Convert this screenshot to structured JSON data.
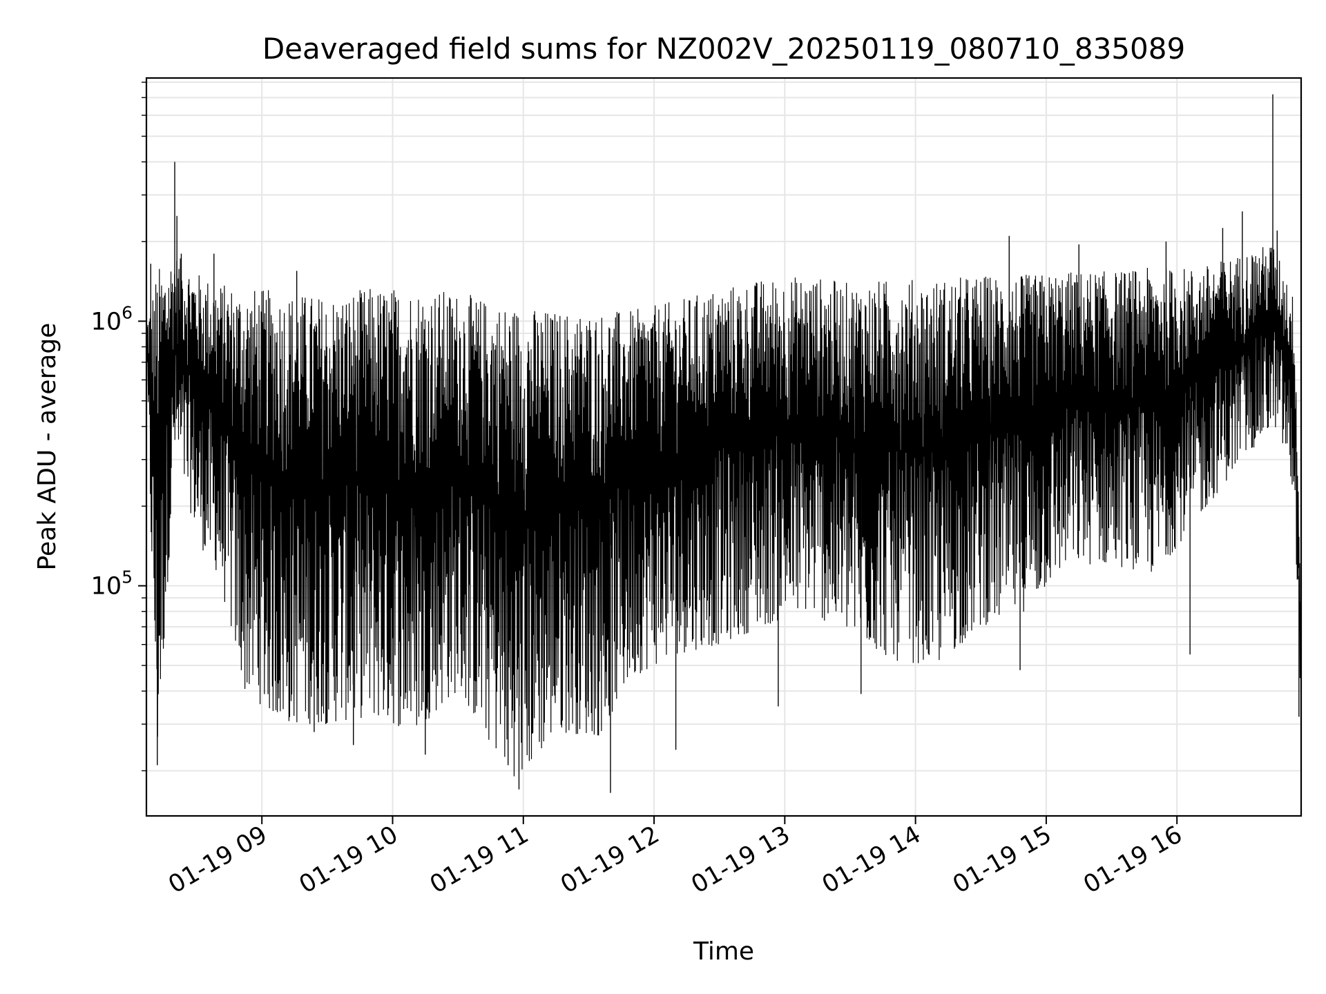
{
  "chart_data": {
    "type": "line",
    "title": "Deaveraged field sums for NZ002V_20250119_080710_835089",
    "xlabel": "Time",
    "ylabel": "Peak ADU - average",
    "y_scale": "log",
    "ylim": [
      13500,
      8300000
    ],
    "xlim": [
      "2025-01-19 08:07",
      "2025-01-19 16:57"
    ],
    "grid": true,
    "line_color": "#000000",
    "x_ticks": [
      {
        "label": "01-19 09",
        "time": "2025-01-19 09:00"
      },
      {
        "label": "01-19 10",
        "time": "2025-01-19 10:00"
      },
      {
        "label": "01-19 11",
        "time": "2025-01-19 11:00"
      },
      {
        "label": "01-19 12",
        "time": "2025-01-19 12:00"
      },
      {
        "label": "01-19 13",
        "time": "2025-01-19 13:00"
      },
      {
        "label": "01-19 14",
        "time": "2025-01-19 14:00"
      },
      {
        "label": "01-19 15",
        "time": "2025-01-19 15:00"
      },
      {
        "label": "01-19 16",
        "time": "2025-01-19 16:00"
      }
    ],
    "y_ticks": [
      {
        "label_base": "10",
        "label_exp": "5",
        "value": 100000
      },
      {
        "label_base": "10",
        "label_exp": "6",
        "value": 1000000
      }
    ],
    "series": [
      {
        "style": "dense-oscillating",
        "envelope": [
          {
            "time": "2025-01-19 08:07",
            "high": 1000000,
            "low": 600000
          },
          {
            "time": "2025-01-19 08:12",
            "high": 1600000,
            "low": 21000
          },
          {
            "time": "2025-01-19 08:20",
            "high": 1800000,
            "low": 300000
          },
          {
            "time": "2025-01-19 08:32",
            "high": 1500000,
            "low": 140000
          },
          {
            "time": "2025-01-19 08:40",
            "high": 1400000,
            "low": 110000
          },
          {
            "time": "2025-01-19 08:52",
            "high": 1350000,
            "low": 40000
          },
          {
            "time": "2025-01-19 09:10",
            "high": 1300000,
            "low": 30000
          },
          {
            "time": "2025-01-19 09:30",
            "high": 1250000,
            "low": 30000
          },
          {
            "time": "2025-01-19 09:50",
            "high": 1350000,
            "low": 32000
          },
          {
            "time": "2025-01-19 10:10",
            "high": 1350000,
            "low": 28000
          },
          {
            "time": "2025-01-19 10:30",
            "high": 1300000,
            "low": 40000
          },
          {
            "time": "2025-01-19 10:45",
            "high": 1200000,
            "low": 25000
          },
          {
            "time": "2025-01-19 10:58",
            "high": 1150000,
            "low": 18000
          },
          {
            "time": "2025-01-19 11:15",
            "high": 1100000,
            "low": 28000
          },
          {
            "time": "2025-01-19 11:35",
            "high": 1100000,
            "low": 27000
          },
          {
            "time": "2025-01-19 11:50",
            "high": 1100000,
            "low": 45000
          },
          {
            "time": "2025-01-19 12:10",
            "high": 1200000,
            "low": 55000
          },
          {
            "time": "2025-01-19 12:30",
            "high": 1350000,
            "low": 60000
          },
          {
            "time": "2025-01-19 12:50",
            "high": 1450000,
            "low": 70000
          },
          {
            "time": "2025-01-19 13:10",
            "high": 1500000,
            "low": 80000
          },
          {
            "time": "2025-01-19 13:30",
            "high": 1400000,
            "low": 65000
          },
          {
            "time": "2025-01-19 13:50",
            "high": 1450000,
            "low": 52000
          },
          {
            "time": "2025-01-19 14:10",
            "high": 1450000,
            "low": 50000
          },
          {
            "time": "2025-01-19 14:30",
            "high": 1500000,
            "low": 70000
          },
          {
            "time": "2025-01-19 14:50",
            "high": 1500000,
            "low": 80000
          },
          {
            "time": "2025-01-19 15:10",
            "high": 1550000,
            "low": 120000
          },
          {
            "time": "2025-01-19 15:30",
            "high": 1550000,
            "low": 120000
          },
          {
            "time": "2025-01-19 15:50",
            "high": 1600000,
            "low": 110000
          },
          {
            "time": "2025-01-19 16:10",
            "high": 1600000,
            "low": 180000
          },
          {
            "time": "2025-01-19 16:30",
            "high": 1800000,
            "low": 300000
          },
          {
            "time": "2025-01-19 16:45",
            "high": 2000000,
            "low": 400000
          },
          {
            "time": "2025-01-19 16:50",
            "high": 1500000,
            "low": 300000
          },
          {
            "time": "2025-01-19 16:54",
            "high": 1200000,
            "low": 200000
          },
          {
            "time": "2025-01-19 16:57",
            "high": 80000,
            "low": 33000
          }
        ],
        "spikes": [
          {
            "time": "2025-01-19 08:09",
            "value": 1650000
          },
          {
            "time": "2025-01-19 08:12",
            "value": 21000
          },
          {
            "time": "2025-01-19 08:20",
            "value": 4000000
          },
          {
            "time": "2025-01-19 08:21",
            "value": 2500000
          },
          {
            "time": "2025-01-19 08:23",
            "value": 1800000
          },
          {
            "time": "2025-01-19 08:38",
            "value": 1800000
          },
          {
            "time": "2025-01-19 09:16",
            "value": 1550000
          },
          {
            "time": "2025-01-19 09:24",
            "value": 28000
          },
          {
            "time": "2025-01-19 09:42",
            "value": 25000
          },
          {
            "time": "2025-01-19 10:15",
            "value": 23000
          },
          {
            "time": "2025-01-19 10:53",
            "value": 21000
          },
          {
            "time": "2025-01-19 10:58",
            "value": 17000
          },
          {
            "time": "2025-01-19 11:40",
            "value": 16500
          },
          {
            "time": "2025-01-19 12:10",
            "value": 24000
          },
          {
            "time": "2025-01-19 12:57",
            "value": 35000
          },
          {
            "time": "2025-01-19 13:35",
            "value": 39000
          },
          {
            "time": "2025-01-19 14:43",
            "value": 2100000
          },
          {
            "time": "2025-01-19 14:48",
            "value": 48000
          },
          {
            "time": "2025-01-19 15:15",
            "value": 1950000
          },
          {
            "time": "2025-01-19 15:55",
            "value": 2000000
          },
          {
            "time": "2025-01-19 16:06",
            "value": 55000
          },
          {
            "time": "2025-01-19 16:21",
            "value": 2250000
          },
          {
            "time": "2025-01-19 16:30",
            "value": 2600000
          },
          {
            "time": "2025-01-19 16:44",
            "value": 7200000
          },
          {
            "time": "2025-01-19 16:46",
            "value": 2200000
          },
          {
            "time": "2025-01-19 16:56",
            "value": 32000
          }
        ]
      }
    ]
  }
}
